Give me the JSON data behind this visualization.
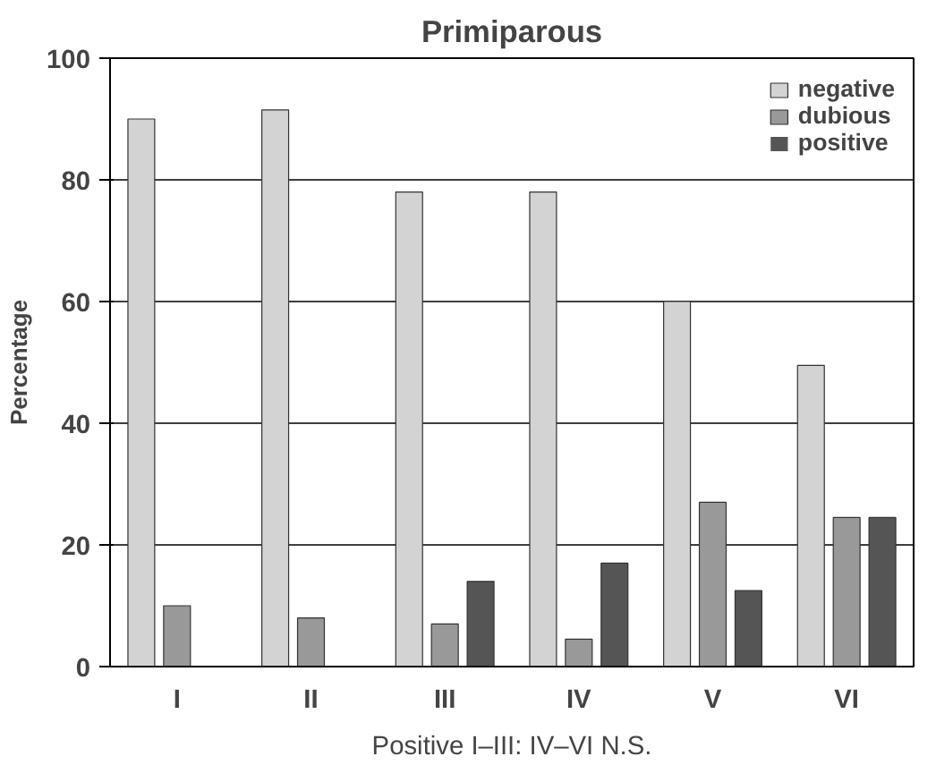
{
  "chart_data": {
    "type": "bar",
    "title": "Primiparous",
    "ylabel": "Percentage",
    "categories": [
      "I",
      "II",
      "III",
      "IV",
      "V",
      "VI"
    ],
    "series": [
      {
        "name": "negative",
        "color": "#d3d3d3",
        "values": [
          90,
          91.5,
          78,
          78,
          60,
          49.5
        ]
      },
      {
        "name": "dubious",
        "color": "#999999",
        "values": [
          10,
          8,
          7,
          4.5,
          27,
          24.5
        ]
      },
      {
        "name": "positive",
        "color": "#555555",
        "values": [
          0,
          0,
          14,
          17,
          12.5,
          24.5
        ]
      }
    ],
    "ylim": [
      0,
      100
    ],
    "yticks": [
      0,
      20,
      40,
      60,
      80,
      100
    ],
    "grid": "y",
    "legend": "top right",
    "annotations": [
      "Positive I–III: IV–VI N.S."
    ]
  }
}
